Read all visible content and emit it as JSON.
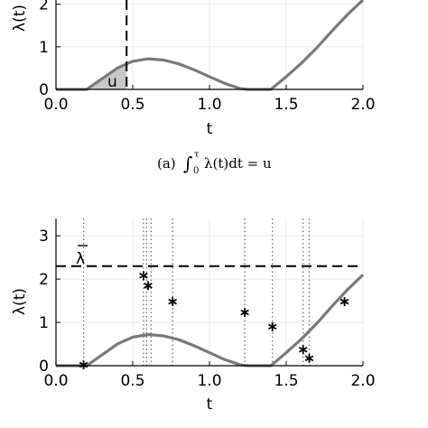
{
  "chart_data": [
    {
      "type": "line",
      "xlabel": "t",
      "ylabel": "λ(t)",
      "xlim": [
        0,
        2
      ],
      "ylim": [
        0,
        2.1
      ],
      "xticks": [
        "0.0",
        "0.5",
        "1.0",
        "1.5",
        "2.0"
      ],
      "yticks": [
        "0",
        "1",
        "2"
      ],
      "grid": true,
      "series": [
        {
          "x": [
            0.0,
            0.2,
            0.3,
            0.4,
            0.46,
            0.5,
            0.6,
            0.7,
            0.8,
            0.9,
            1.0,
            1.1,
            1.2,
            1.25,
            1.3,
            1.4,
            1.5,
            1.6,
            1.7,
            1.8,
            1.9,
            2.0
          ],
          "values": [
            0.0,
            0.0,
            0.25,
            0.5,
            0.6,
            0.66,
            0.72,
            0.69,
            0.6,
            0.46,
            0.3,
            0.14,
            0.02,
            0.0,
            0.0,
            0.0,
            0.3,
            0.62,
            0.98,
            1.38,
            1.76,
            2.1
          ]
        }
      ],
      "shaded_region": {
        "x_from": 0.2,
        "x_to": 0.46,
        "label": "u"
      },
      "vline": {
        "x": 0.46,
        "style": "dashed"
      },
      "caption": {
        "prefix": "(a)",
        "integral": "∫",
        "lower": "0",
        "upper": "τ",
        "body": "λ(t)dt = u"
      }
    },
    {
      "type": "scatter",
      "xlabel": "t",
      "ylabel": "λ(t)",
      "xlim": [
        0,
        2
      ],
      "ylim": [
        0,
        3.4
      ],
      "xticks": [
        "0.0",
        "0.5",
        "1.0",
        "1.5",
        "2.0"
      ],
      "yticks": [
        "0",
        "1",
        "2",
        "3"
      ],
      "grid": true,
      "hline": {
        "y": 2.3,
        "label": "λ",
        "style": "dashed"
      },
      "curve": {
        "x": [
          0.0,
          0.2,
          0.3,
          0.4,
          0.5,
          0.6,
          0.7,
          0.8,
          0.9,
          1.0,
          1.1,
          1.2,
          1.25,
          1.3,
          1.4,
          1.5,
          1.6,
          1.7,
          1.8,
          1.9,
          2.0
        ],
        "values": [
          0.0,
          0.0,
          0.25,
          0.5,
          0.66,
          0.72,
          0.69,
          0.6,
          0.46,
          0.3,
          0.14,
          0.02,
          0.0,
          0.0,
          0.0,
          0.3,
          0.62,
          0.98,
          1.38,
          1.76,
          2.1
        ]
      },
      "points": {
        "x": [
          0.18,
          0.57,
          0.6,
          0.76,
          1.23,
          1.41,
          1.61,
          1.65,
          1.88
        ],
        "values": [
          0.02,
          2.08,
          1.85,
          1.48,
          1.23,
          0.9,
          0.37,
          0.17,
          1.48
        ]
      },
      "vlines": [
        0.18,
        0.57,
        0.59,
        0.62,
        0.76,
        1.23,
        1.41,
        1.61,
        1.65
      ]
    }
  ]
}
